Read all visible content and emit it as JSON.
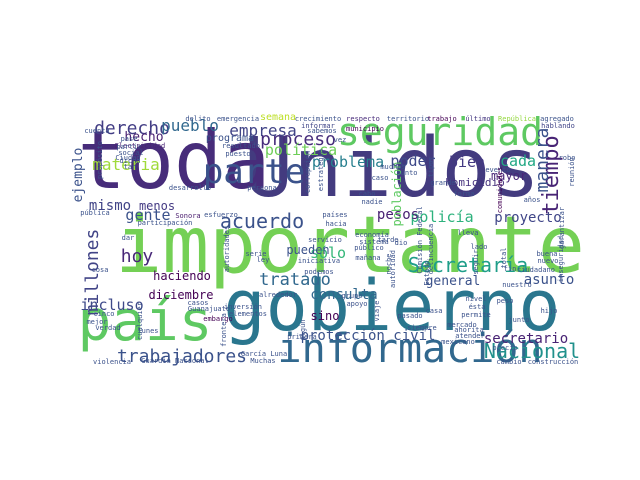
{
  "wordcloud": {
    "words": [
      {
        "text": "Unidos",
        "color": "#433b7f"
      },
      {
        "text": "toda",
        "color": "#472c7a"
      },
      {
        "text": "importante",
        "color": "#74d055"
      },
      {
        "text": "gobierno",
        "color": "#2a768e"
      },
      {
        "text": "país",
        "color": "#5ec962"
      },
      {
        "text": "información",
        "color": "#31688e"
      },
      {
        "text": "seguridad",
        "color": "#5ec962"
      },
      {
        "text": "parte",
        "color": "#3b528b"
      },
      {
        "text": "trabajadores",
        "color": "#3b528b"
      },
      {
        "text": "Nacional",
        "color": "#21918c"
      },
      {
        "text": "tiempo",
        "color": "#482475"
      },
      {
        "text": "Secretaría",
        "color": "#1f9e89"
      },
      {
        "text": "materia",
        "color": "#a0da39"
      },
      {
        "text": "millones",
        "color": "#414487"
      },
      {
        "text": "tratado",
        "color": "#31688e"
      },
      {
        "text": "acuerdo",
        "color": "#3b528b"
      },
      {
        "text": "manera",
        "color": "#3b528b"
      },
      {
        "text": "derecho",
        "color": "#433e85"
      },
      {
        "text": "proceso",
        "color": "#472d7b"
      },
      {
        "text": "empresa",
        "color": "#414487"
      },
      {
        "text": "pueblo",
        "color": "#31688e"
      },
      {
        "text": "política",
        "color": "#6ece58"
      },
      {
        "text": "problema",
        "color": "#277f8e"
      },
      {
        "text": "poder",
        "color": "#3e4989"
      },
      {
        "text": "bien",
        "color": "#443983"
      },
      {
        "text": "cada",
        "color": "#22a884"
      },
      {
        "text": "gente",
        "color": "#3b528b"
      },
      {
        "text": "mismo",
        "color": "#414487"
      },
      {
        "text": "hoy",
        "color": "#482878"
      },
      {
        "text": "ejemplo",
        "color": "#3b528b"
      },
      {
        "text": "hecho",
        "color": "#481f70"
      },
      {
        "text": "incluso",
        "color": "#3e4a89"
      },
      {
        "text": "sólo",
        "color": "#35b779"
      },
      {
        "text": "policía",
        "color": "#2db27d"
      },
      {
        "text": "pesos",
        "color": "#482173"
      },
      {
        "text": "proyecto",
        "color": "#404688"
      },
      {
        "text": "secretario",
        "color": "#482374"
      },
      {
        "text": "protección civil",
        "color": "#3b528b"
      },
      {
        "text": "asunto",
        "color": "#3b528b"
      },
      {
        "text": "general",
        "color": "#3b528b"
      },
      {
        "text": "consulta",
        "color": "#31688e"
      },
      {
        "text": "pueden",
        "color": "#3b528b"
      },
      {
        "text": "haciendo",
        "color": "#440154"
      },
      {
        "text": "diciembre",
        "color": "#440154"
      },
      {
        "text": "menos",
        "color": "#443a83"
      },
      {
        "text": "sino",
        "color": "#440154"
      },
      {
        "text": "mayor",
        "color": "#482677"
      },
      {
        "text": "homicidio",
        "color": "#46327e"
      },
      {
        "text": "programa",
        "color": "#3b528b"
      },
      {
        "text": "semana",
        "color": "#bddf26"
      },
      {
        "text": "emergencia",
        "color": "#3b528b"
      },
      {
        "text": "crecimiento",
        "color": "#3b528b"
      },
      {
        "text": "respecto",
        "color": "#472a7a"
      },
      {
        "text": "territorio",
        "color": "#3b528b"
      },
      {
        "text": "trabajo",
        "color": "#440154"
      },
      {
        "text": "último",
        "color": "#453781"
      },
      {
        "text": "República",
        "color": "#95d840"
      },
      {
        "text": "agregado",
        "color": "#3b528b"
      },
      {
        "text": "hablando",
        "color": "#414487"
      },
      {
        "text": "municipio",
        "color": "#440154"
      },
      {
        "text": "informar",
        "color": "#404688"
      },
      {
        "text": "delito",
        "color": "#3b528b"
      },
      {
        "text": "cuenta",
        "color": "#3b528b"
      },
      {
        "text": "Electricidad",
        "color": "#482475"
      },
      {
        "text": "Ciudad",
        "color": "#3b528b"
      },
      {
        "text": "desarrollo",
        "color": "#3b528b"
      },
      {
        "text": "persona",
        "color": "#3b528b"
      },
      {
        "text": "Sonora",
        "color": "#481b6d"
      },
      {
        "text": "esfuerzo",
        "color": "#3b528b"
      },
      {
        "text": "participación",
        "color": "#3b528b"
      },
      {
        "text": "pública",
        "color": "#3b528b"
      },
      {
        "text": "población",
        "color": "#5ec962"
      },
      {
        "text": "caso",
        "color": "#3b528b"
      },
      {
        "text": "punto",
        "color": "#3b528b"
      },
      {
        "text": "evento",
        "color": "#3b528b"
      },
      {
        "text": "robo",
        "color": "#3b528b"
      },
      {
        "text": "comunidades",
        "color": "#440154"
      },
      {
        "text": "años",
        "color": "#3b528b"
      },
      {
        "text": "alrededor",
        "color": "#3b528b"
      },
      {
        "text": "inversión",
        "color": "#3b528b"
      },
      {
        "text": "elementos",
        "color": "#3b528b"
      },
      {
        "text": "mañana",
        "color": "#3b528b"
      },
      {
        "text": "podemos",
        "color": "#3b528b"
      },
      {
        "text": "Guanajuato",
        "color": "#3b528b"
      },
      {
        "text": "casos",
        "color": "#3b528b"
      },
      {
        "text": "embargo",
        "color": "#440154"
      },
      {
        "text": "primera",
        "color": "#3b528b"
      },
      {
        "text": "García Luna",
        "color": "#3b528b"
      },
      {
        "text": "Muchas",
        "color": "#3b528b"
      },
      {
        "text": "Guardia Nacional",
        "color": "#3b528b"
      },
      {
        "text": "violencia",
        "color": "#3b528b"
      },
      {
        "text": "mercado",
        "color": "#3b528b"
      },
      {
        "text": "ahorita",
        "color": "#3b528b"
      },
      {
        "text": "siempre",
        "color": "#3b528b"
      },
      {
        "text": "mexicano",
        "color": "#3b528b"
      },
      {
        "text": "peso",
        "color": "#3b528b"
      },
      {
        "text": "hijo",
        "color": "#3b528b"
      },
      {
        "text": "permite",
        "color": "#3b528b"
      },
      {
        "text": "cambio",
        "color": "#3b528b"
      },
      {
        "text": "construcción",
        "color": "#3b528b"
      },
      {
        "text": "precio",
        "color": "#3b528b"
      },
      {
        "text": "buena",
        "color": "#3b528b"
      },
      {
        "text": "nuevo",
        "color": "#3b528b"
      },
      {
        "text": "lado",
        "color": "#3b528b"
      },
      {
        "text": "fin",
        "color": "#3b528b"
      },
      {
        "text": "ley",
        "color": "#3b528b"
      },
      {
        "text": "dio",
        "color": "#3b528b"
      },
      {
        "text": "sistema",
        "color": "#3b528b"
      },
      {
        "text": "público",
        "color": "#3b528b"
      },
      {
        "text": "iniciativa",
        "color": "#3b528b"
      },
      {
        "text": "Comisión Federal",
        "color": "#3b528b"
      },
      {
        "text": "delincuencia",
        "color": "#3b528b"
      },
      {
        "text": "mejor",
        "color": "#3b528b"
      },
      {
        "text": "cinco",
        "color": "#3b528b"
      },
      {
        "text": "verdad",
        "color": "#3b528b"
      },
      {
        "text": "lunes",
        "color": "#3b528b"
      },
      {
        "text": "cosa",
        "color": "#3b528b"
      },
      {
        "text": "serie",
        "color": "#3b528b"
      },
      {
        "text": "frontera",
        "color": "#3b528b"
      },
      {
        "text": "autoridades",
        "color": "#3b528b"
      },
      {
        "text": "inseguridad",
        "color": "#3b528b"
      },
      {
        "text": "ciudadano",
        "color": "#3b528b"
      },
      {
        "text": "dicho",
        "color": "#3b528b"
      },
      {
        "text": "tan",
        "color": "#3b528b"
      },
      {
        "text": "propósito",
        "color": "#3b528b"
      },
      {
        "text": "reunión",
        "color": "#3b528b"
      },
      {
        "text": "garantizar",
        "color": "#3b528b"
      },
      {
        "text": "pase",
        "color": "#3b528b"
      },
      {
        "text": "partir",
        "color": "#3b528b"
      },
      {
        "text": "social",
        "color": "#3b528b"
      },
      {
        "text": "resultado",
        "color": "#3b528b"
      },
      {
        "text": "puesto",
        "color": "#3b528b"
      },
      {
        "text": "muchos",
        "color": "#3b528b"
      },
      {
        "text": "grande",
        "color": "#3b528b"
      },
      {
        "text": "tipo",
        "color": "#3b528b"
      },
      {
        "text": "estrategia",
        "color": "#3b528b"
      },
      {
        "text": "corrupción",
        "color": "#3b528b"
      },
      {
        "text": "cabo",
        "color": "#3b528b"
      },
      {
        "text": "sabemos",
        "color": "#3b528b"
      },
      {
        "text": "vez",
        "color": "#3b528b"
      },
      {
        "text": "hacia",
        "color": "#3b528b"
      },
      {
        "text": "países",
        "color": "#3b528b"
      },
      {
        "text": "servicio",
        "color": "#3b528b"
      },
      {
        "text": "autoridad",
        "color": "#3b528b"
      },
      {
        "text": "economía",
        "color": "#3b528b"
      },
      {
        "text": "dar",
        "color": "#3b528b"
      },
      {
        "text": "nivel",
        "color": "#3b528b"
      },
      {
        "text": "ésta",
        "color": "#3b528b"
      },
      {
        "text": "atender",
        "color": "#3b528b"
      },
      {
        "text": "junto",
        "color": "#3b528b"
      },
      {
        "text": "algún",
        "color": "#3b528b"
      },
      {
        "text": "pasado",
        "color": "#3b528b"
      },
      {
        "text": "cualquier",
        "color": "#3b528b"
      },
      {
        "text": "total",
        "color": "#3b528b"
      },
      {
        "text": "nadie",
        "color": "#3b528b"
      },
      {
        "text": "apoyo",
        "color": "#3b528b"
      },
      {
        "text": "grupo",
        "color": "#3b528b"
      },
      {
        "text": "casa",
        "color": "#3b528b"
      },
      {
        "text": "nuestro",
        "color": "#3b528b"
      },
      {
        "text": "viaje",
        "color": "#3b528b"
      },
      {
        "text": "tarde",
        "color": "#3b528b"
      },
      {
        "text": "lleva",
        "color": "#3b528b"
      },
      {
        "text": "noche",
        "color": "#3b528b"
      },
      {
        "text": "Estado",
        "color": "#3b528b"
      },
      {
        "text": "forma",
        "color": "#3b528b"
      },
      {
        "text": "seguir",
        "color": "#3b528b"
      }
    ]
  }
}
